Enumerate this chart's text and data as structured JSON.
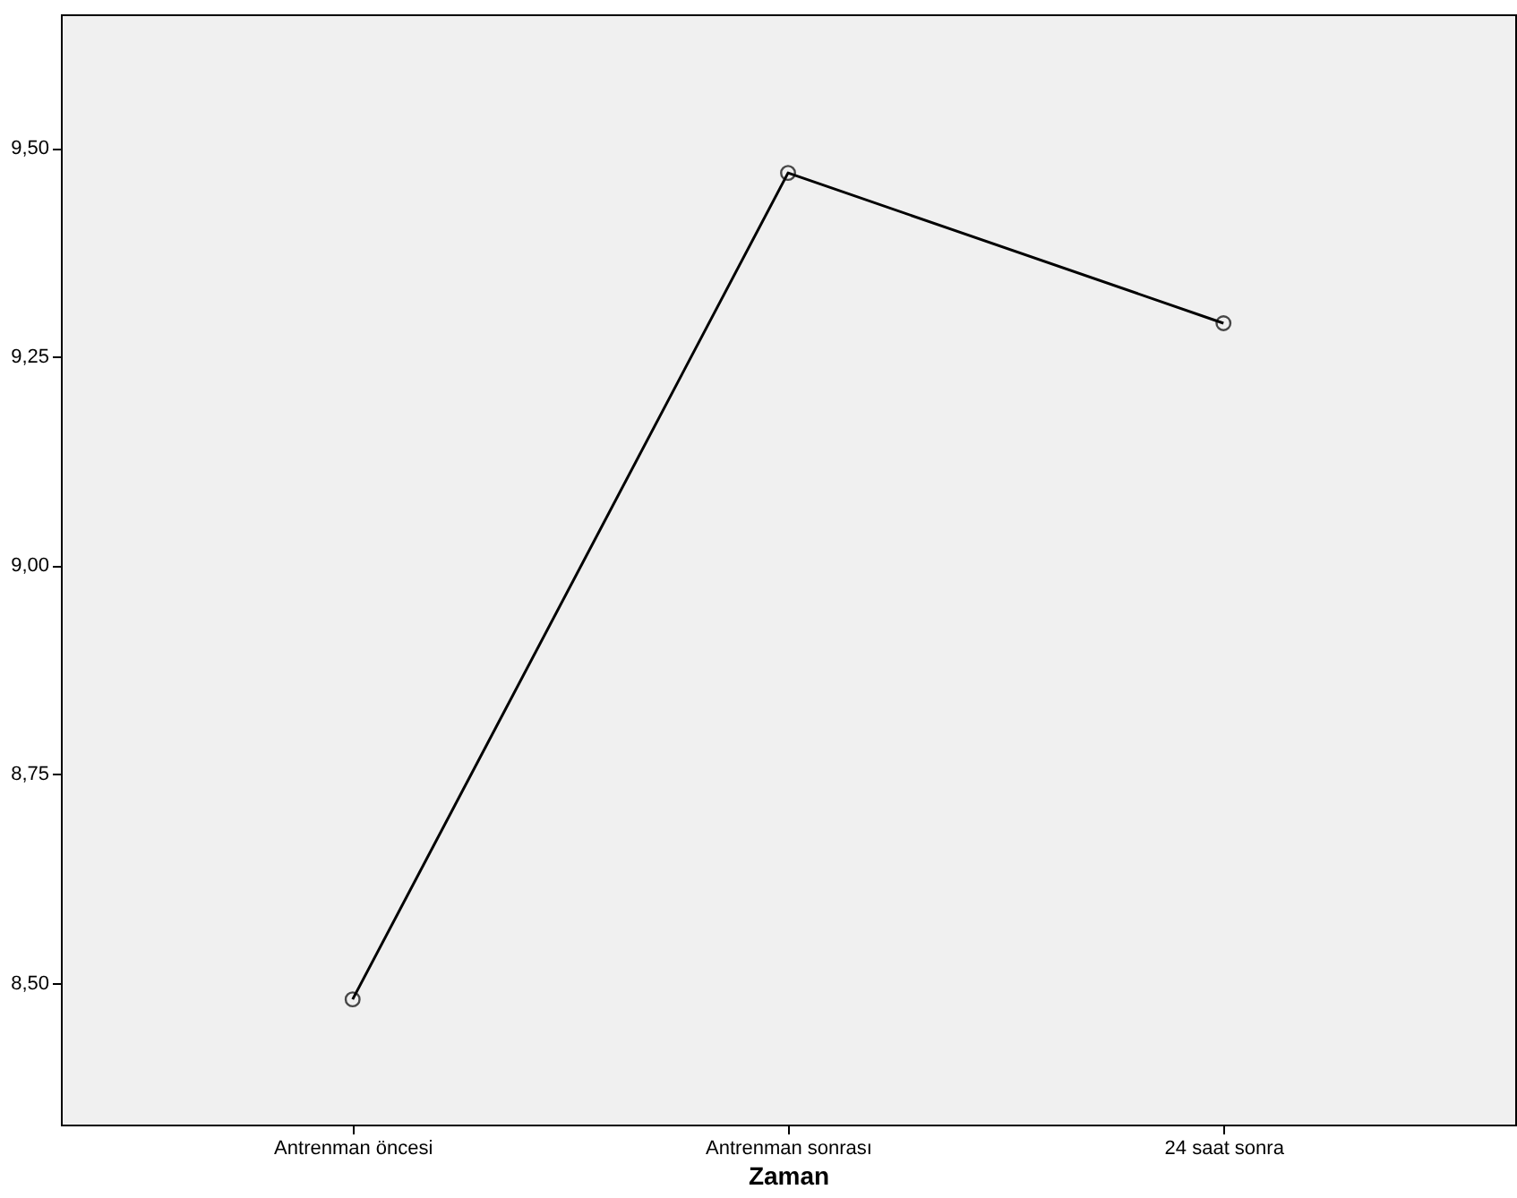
{
  "chart_data": {
    "type": "line",
    "xlabel": "Zaman",
    "categories": [
      "Antrenman öncesi",
      "Antrenman sonrası",
      "24 saat sonra"
    ],
    "series": [
      {
        "color": "#000000",
        "values": [
          8.48,
          9.47,
          9.29
        ]
      }
    ],
    "ylim": [
      8.33,
      9.66
    ],
    "yticks": [
      {
        "value": 8.5,
        "label": "8,50"
      },
      {
        "value": 8.75,
        "label": "8,75"
      },
      {
        "value": 9.0,
        "label": "9,00"
      },
      {
        "value": 9.25,
        "label": "9,25"
      },
      {
        "value": 9.5,
        "label": "9,50"
      }
    ],
    "grid": false,
    "marker": "circle",
    "line_style": "solid"
  }
}
